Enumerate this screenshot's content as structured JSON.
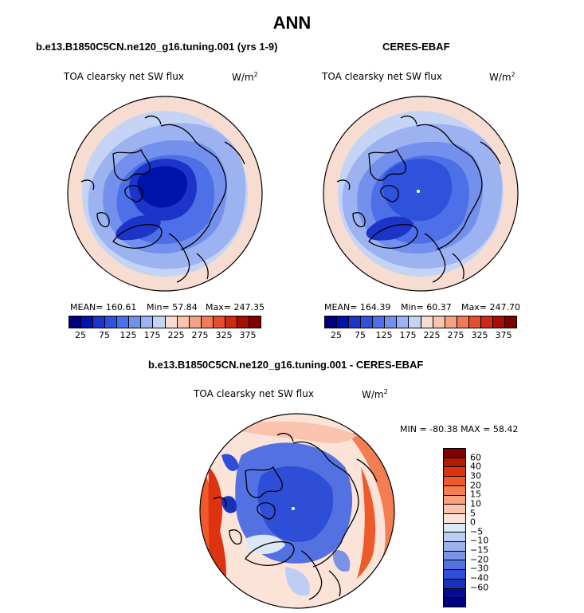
{
  "title": "ANN",
  "panels": [
    {
      "subtitle": "b.e13.B1850C5CN.ne120_g16.tuning.001 (yrs 1-9)",
      "field": "TOA clearsky net SW flux",
      "units": "W/m",
      "units_exp": "2",
      "mean": "MEAN= 160.61",
      "min": "Min=  57.84",
      "max": "Max= 247.35"
    },
    {
      "subtitle": "CERES-EBAF",
      "field": "TOA clearsky net SW flux",
      "units": "W/m",
      "units_exp": "2",
      "mean": "MEAN= 164.39",
      "min": "Min=  60.37",
      "max": "Max= 247.70"
    },
    {
      "subtitle": "b.e13.B1850C5CN.ne120_g16.tuning.001 - CERES-EBAF",
      "field": "TOA clearsky net SW flux",
      "units": "W/m",
      "units_exp": "2",
      "minmax": "MIN = -80.38 MAX =  58.42"
    }
  ],
  "abs_colorbar": {
    "colors": [
      "#00007f",
      "#0013a8",
      "#1c34c8",
      "#2f52dd",
      "#4d6fe8",
      "#7391ec",
      "#9cb2f1",
      "#c5d4f5",
      "#f7ddd1",
      "#f9c3ad",
      "#f6a284",
      "#f07a59",
      "#e54f31",
      "#cc2a14",
      "#a70f06",
      "#7f0000"
    ],
    "labels": [
      "25",
      "75",
      "125",
      "175",
      "225",
      "275",
      "325",
      "375"
    ]
  },
  "diff_colorbar": {
    "colors": [
      "#7f0000",
      "#b31a00",
      "#de3311",
      "#ef5a2a",
      "#f47d51",
      "#f7a17f",
      "#f9c3ad",
      "#fbe3d8",
      "#dde8f7",
      "#bccff3",
      "#9bb2ee",
      "#7a93e7",
      "#5471e2",
      "#2f4ed8",
      "#1731b8",
      "#050c8f",
      "#00007f"
    ],
    "labels": [
      "60",
      "40",
      "30",
      "20",
      "15",
      "10",
      "5",
      "0",
      "−5",
      "−10",
      "−15",
      "−20",
      "−30",
      "−40",
      "−60"
    ]
  }
}
